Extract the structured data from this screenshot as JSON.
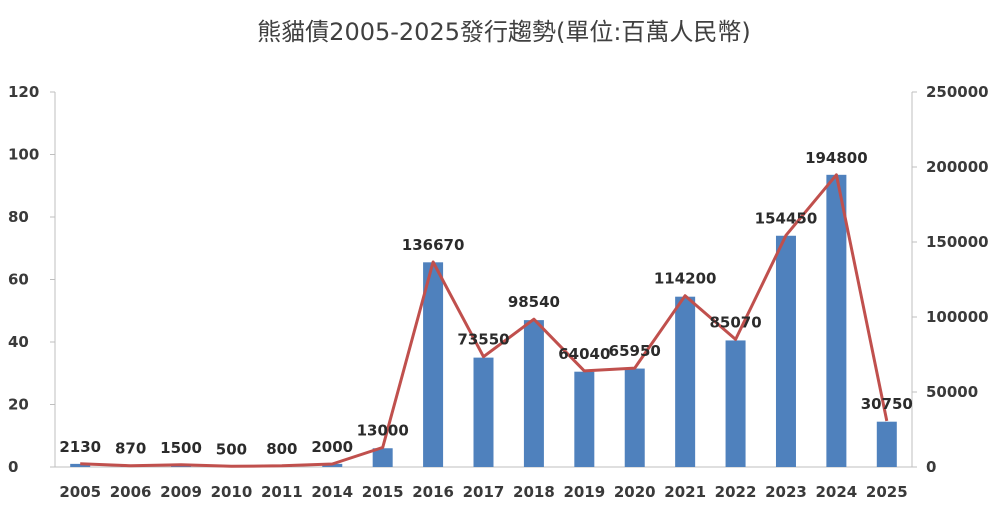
{
  "chart_data": {
    "type": "bar",
    "title": "熊貓債2005-2025發行趨勢(單位:百萬人民幣)",
    "categories": [
      "2005",
      "2006",
      "2009",
      "2010",
      "2011",
      "2014",
      "2015",
      "2016",
      "2017",
      "2018",
      "2019",
      "2020",
      "2021",
      "2022",
      "2023",
      "2024",
      "2025"
    ],
    "series": [
      {
        "type": "bar",
        "axis": "left",
        "color": "#4f81bd",
        "values": [
          1,
          0.2,
          0.5,
          0.2,
          0.2,
          1,
          6,
          65.5,
          35,
          47,
          30.5,
          31.5,
          54.5,
          40.5,
          74,
          93.5,
          14.5
        ]
      },
      {
        "type": "line",
        "axis": "right",
        "color": "#c0504d",
        "values": [
          2130,
          870,
          1500,
          500,
          800,
          2000,
          13000,
          136670,
          73550,
          98540,
          64040,
          65950,
          114200,
          85070,
          154450,
          194800,
          30750
        ],
        "labels": [
          "2130",
          "870",
          "1500",
          "500",
          "800",
          "2000",
          "13000",
          "136670",
          "73550",
          "98540",
          "64040",
          "65950",
          "114200",
          "85070",
          "154450",
          "194800",
          "30750"
        ]
      }
    ],
    "ylim_left": [
      0,
      120
    ],
    "yticks_left": [
      "0",
      "20",
      "40",
      "60",
      "80",
      "100",
      "120"
    ],
    "ylim_right": [
      0,
      250000
    ],
    "yticks_right": [
      "0",
      "50000",
      "100000",
      "150000",
      "200000",
      "250000"
    ],
    "xlabel": "",
    "ylabel": "",
    "grid": false,
    "legend": "none"
  }
}
